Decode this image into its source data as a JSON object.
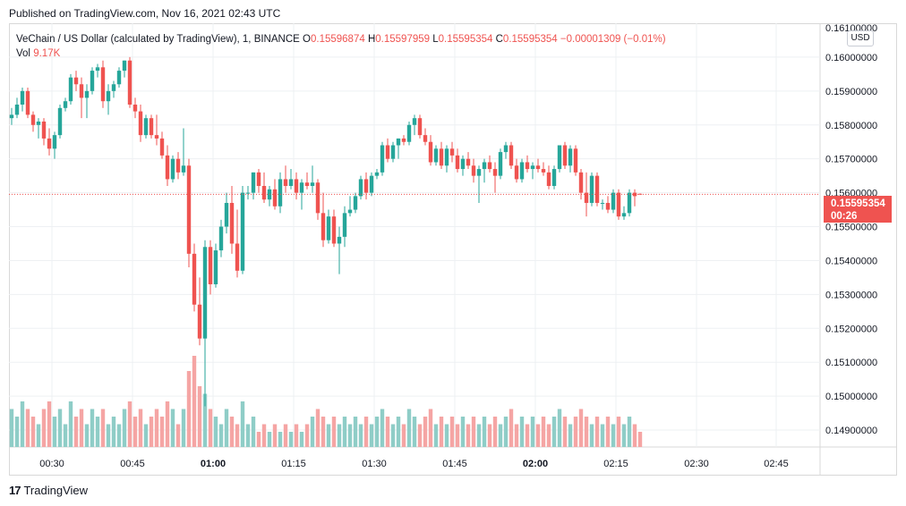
{
  "published": "Published on TradingView.com, Nov 16, 2021 02:43 UTC",
  "legend": {
    "symbol": "VeChain / US Dollar (calculated by TradingView), 1, BINANCE",
    "o_label": "O",
    "o_value": "0.15596874",
    "h_label": "H",
    "h_value": "0.15597959",
    "l_label": "L",
    "l_value": "0.15595354",
    "c_label": "C",
    "c_value": "0.15595354",
    "change": "−0.00001309 (−0.01%)",
    "vol_label": "Vol",
    "vol_value": "9.17K"
  },
  "currency": "USD",
  "last_price": {
    "value": "0.15595354",
    "countdown": "00:26"
  },
  "brand": "TradingView",
  "colors": {
    "up": "#26a69a",
    "down": "#ef5350",
    "up_vol": "#8fcdc7",
    "down_vol": "#f5a5a4",
    "grid": "#eef0f3"
  },
  "icons": {
    "brand": "tradingview-logo-icon"
  },
  "chart_data": {
    "type": "candlestick",
    "y_axis": {
      "min": 0.1485,
      "max": 0.161,
      "ticks": [
        "0.16100000",
        "0.16000000",
        "0.15900000",
        "0.15800000",
        "0.15700000",
        "0.15600000",
        "0.15500000",
        "0.15400000",
        "0.15300000",
        "0.15200000",
        "0.15100000",
        "0.15000000",
        "0.14900000"
      ]
    },
    "x_axis": {
      "ticks": [
        "00:30",
        "00:45",
        "01:00",
        "01:15",
        "01:30",
        "01:45",
        "02:00",
        "02:15",
        "02:30",
        "02:45"
      ]
    },
    "grid": true,
    "last_price": 0.15595354,
    "candles": [
      [
        0.1582,
        0.1585,
        0.158,
        0.1583,
        5
      ],
      [
        0.1583,
        0.1588,
        0.1582,
        0.1586,
        4
      ],
      [
        0.1586,
        0.1591,
        0.1584,
        0.159,
        6
      ],
      [
        0.159,
        0.1591,
        0.1582,
        0.1583,
        5
      ],
      [
        0.1583,
        0.1584,
        0.1578,
        0.158,
        4
      ],
      [
        0.158,
        0.1582,
        0.1576,
        0.1581,
        3
      ],
      [
        0.1581,
        0.1582,
        0.1574,
        0.1576,
        5
      ],
      [
        0.1576,
        0.1579,
        0.1571,
        0.1573,
        6
      ],
      [
        0.1573,
        0.1578,
        0.157,
        0.1577,
        4
      ],
      [
        0.1577,
        0.1586,
        0.1576,
        0.1585,
        5
      ],
      [
        0.1585,
        0.1588,
        0.1584,
        0.1587,
        3
      ],
      [
        0.1587,
        0.1595,
        0.1586,
        0.1594,
        6
      ],
      [
        0.1594,
        0.1596,
        0.159,
        0.1592,
        4
      ],
      [
        0.1592,
        0.1594,
        0.1582,
        0.1588,
        5
      ],
      [
        0.1588,
        0.1592,
        0.1582,
        0.159,
        3
      ],
      [
        0.159,
        0.1597,
        0.1589,
        0.1596,
        5
      ],
      [
        0.1596,
        0.1598,
        0.1594,
        0.1597,
        4
      ],
      [
        0.1597,
        0.1599,
        0.1585,
        0.1587,
        5
      ],
      [
        0.1587,
        0.1592,
        0.1583,
        0.159,
        3
      ],
      [
        0.159,
        0.1593,
        0.1588,
        0.1592,
        4
      ],
      [
        0.1592,
        0.1597,
        0.1591,
        0.1596,
        3
      ],
      [
        0.1596,
        0.1599,
        0.1594,
        0.1599,
        5
      ],
      [
        0.1599,
        0.16,
        0.1585,
        0.1586,
        6
      ],
      [
        0.1586,
        0.1588,
        0.1582,
        0.1584,
        4
      ],
      [
        0.1584,
        0.1586,
        0.1575,
        0.1577,
        5
      ],
      [
        0.1577,
        0.1583,
        0.1576,
        0.1582,
        3
      ],
      [
        0.1582,
        0.1583,
        0.1576,
        0.1577,
        4
      ],
      [
        0.1577,
        0.1583,
        0.1574,
        0.1576,
        5
      ],
      [
        0.1576,
        0.1578,
        0.157,
        0.1571,
        4
      ],
      [
        0.1571,
        0.1574,
        0.1562,
        0.1564,
        6
      ],
      [
        0.1564,
        0.1571,
        0.1563,
        0.157,
        5
      ],
      [
        0.157,
        0.1572,
        0.1564,
        0.1566,
        3
      ],
      [
        0.1566,
        0.1579,
        0.1565,
        0.1568,
        5
      ],
      [
        0.1568,
        0.157,
        0.1538,
        0.1542,
        10
      ],
      [
        0.1542,
        0.1545,
        0.1525,
        0.1527,
        12
      ],
      [
        0.1527,
        0.1535,
        0.1515,
        0.1517,
        8
      ],
      [
        0.1517,
        0.1546,
        0.1497,
        0.1544,
        7
      ],
      [
        0.1544,
        0.1546,
        0.153,
        0.1533,
        5
      ],
      [
        0.1533,
        0.1545,
        0.1532,
        0.1543,
        4
      ],
      [
        0.1543,
        0.1552,
        0.1541,
        0.155,
        3
      ],
      [
        0.155,
        0.156,
        0.1548,
        0.1557,
        5
      ],
      [
        0.1557,
        0.1562,
        0.1542,
        0.1545,
        4
      ],
      [
        0.1545,
        0.1555,
        0.1535,
        0.1537,
        3
      ],
      [
        0.1537,
        0.1562,
        0.1536,
        0.156,
        6
      ],
      [
        0.156,
        0.1562,
        0.1558,
        0.156,
        3
      ],
      [
        0.156,
        0.1566,
        0.1558,
        0.1566,
        4
      ],
      [
        0.1566,
        0.1567,
        0.156,
        0.1562,
        2
      ],
      [
        0.1562,
        0.1566,
        0.1557,
        0.1558,
        3
      ],
      [
        0.1558,
        0.1562,
        0.1556,
        0.1561,
        2
      ],
      [
        0.1561,
        0.1564,
        0.1555,
        0.1556,
        3
      ],
      [
        0.1556,
        0.1566,
        0.1554,
        0.1564,
        2
      ],
      [
        0.1564,
        0.1568,
        0.156,
        0.1562,
        3
      ],
      [
        0.1562,
        0.1567,
        0.1561,
        0.1564,
        2
      ],
      [
        0.1564,
        0.1566,
        0.1558,
        0.156,
        3
      ],
      [
        0.156,
        0.1564,
        0.1555,
        0.1563,
        2
      ],
      [
        0.1563,
        0.1566,
        0.1561,
        0.1562,
        3
      ],
      [
        0.1562,
        0.1568,
        0.156,
        0.1563,
        4
      ],
      [
        0.1563,
        0.1564,
        0.1552,
        0.1554,
        5
      ],
      [
        0.1554,
        0.156,
        0.1544,
        0.1546,
        4
      ],
      [
        0.1546,
        0.1555,
        0.1545,
        0.1553,
        3
      ],
      [
        0.1553,
        0.1555,
        0.1544,
        0.1545,
        4
      ],
      [
        0.1545,
        0.155,
        0.1536,
        0.1547,
        3
      ],
      [
        0.1547,
        0.1556,
        0.1544,
        0.1554,
        4
      ],
      [
        0.1554,
        0.1559,
        0.1553,
        0.1555,
        3
      ],
      [
        0.1555,
        0.156,
        0.1554,
        0.1559,
        4
      ],
      [
        0.1559,
        0.1565,
        0.1558,
        0.1564,
        3
      ],
      [
        0.1564,
        0.1566,
        0.1558,
        0.156,
        4
      ],
      [
        0.156,
        0.1566,
        0.1559,
        0.1565,
        3
      ],
      [
        0.1565,
        0.1567,
        0.1564,
        0.1566,
        4
      ],
      [
        0.1566,
        0.1575,
        0.1565,
        0.1574,
        5
      ],
      [
        0.1574,
        0.1576,
        0.1569,
        0.157,
        4
      ],
      [
        0.157,
        0.1575,
        0.1569,
        0.1574,
        3
      ],
      [
        0.1574,
        0.1576,
        0.157,
        0.1576,
        4
      ],
      [
        0.1576,
        0.1577,
        0.1574,
        0.1575,
        3
      ],
      [
        0.1575,
        0.1581,
        0.1574,
        0.158,
        5
      ],
      [
        0.158,
        0.1583,
        0.1577,
        0.1582,
        4
      ],
      [
        0.1582,
        0.1583,
        0.1576,
        0.1577,
        3
      ],
      [
        0.1577,
        0.1579,
        0.1574,
        0.1575,
        4
      ],
      [
        0.1575,
        0.1577,
        0.1568,
        0.1569,
        5
      ],
      [
        0.1569,
        0.1574,
        0.1568,
        0.1573,
        3
      ],
      [
        0.1573,
        0.1575,
        0.1567,
        0.1568,
        4
      ],
      [
        0.1568,
        0.1574,
        0.1566,
        0.1573,
        3
      ],
      [
        0.1573,
        0.1575,
        0.1569,
        0.1571,
        4
      ],
      [
        0.1571,
        0.1573,
        0.1566,
        0.1567,
        3
      ],
      [
        0.1567,
        0.1571,
        0.1565,
        0.157,
        4
      ],
      [
        0.157,
        0.1572,
        0.1567,
        0.1568,
        3
      ],
      [
        0.1568,
        0.157,
        0.1563,
        0.1565,
        4
      ],
      [
        0.1565,
        0.1568,
        0.1557,
        0.1567,
        3
      ],
      [
        0.1567,
        0.157,
        0.1563,
        0.1569,
        4
      ],
      [
        0.1569,
        0.1571,
        0.1566,
        0.1567,
        3
      ],
      [
        0.1567,
        0.1569,
        0.156,
        0.1565,
        4
      ],
      [
        0.1565,
        0.1573,
        0.1564,
        0.1572,
        3
      ],
      [
        0.1572,
        0.1575,
        0.157,
        0.1574,
        4
      ],
      [
        0.1574,
        0.1575,
        0.1567,
        0.1568,
        5
      ],
      [
        0.1568,
        0.157,
        0.1563,
        0.1564,
        3
      ],
      [
        0.1564,
        0.157,
        0.1563,
        0.1569,
        4
      ],
      [
        0.1569,
        0.1571,
        0.1566,
        0.1567,
        3
      ],
      [
        0.1567,
        0.1569,
        0.1564,
        0.1568,
        4
      ],
      [
        0.1568,
        0.157,
        0.1566,
        0.1567,
        3
      ],
      [
        0.1567,
        0.1569,
        0.1565,
        0.1566,
        4
      ],
      [
        0.1566,
        0.1568,
        0.1561,
        0.1562,
        3
      ],
      [
        0.1562,
        0.1568,
        0.1561,
        0.1567,
        4
      ],
      [
        0.1567,
        0.1574,
        0.1566,
        0.1574,
        5
      ],
      [
        0.1574,
        0.1575,
        0.1567,
        0.1568,
        4
      ],
      [
        0.1568,
        0.1574,
        0.1566,
        0.1573,
        3
      ],
      [
        0.1573,
        0.1574,
        0.1565,
        0.1566,
        4
      ],
      [
        0.1566,
        0.1567,
        0.1558,
        0.156,
        5
      ],
      [
        0.156,
        0.1566,
        0.1553,
        0.1557,
        4
      ],
      [
        0.1557,
        0.1566,
        0.1556,
        0.1565,
        3
      ],
      [
        0.1565,
        0.1566,
        0.1556,
        0.1557,
        4
      ],
      [
        0.1557,
        0.1558,
        0.1555,
        0.1557,
        3
      ],
      [
        0.1557,
        0.1559,
        0.1554,
        0.1555,
        4
      ],
      [
        0.1555,
        0.1561,
        0.1554,
        0.156,
        3
      ],
      [
        0.156,
        0.1561,
        0.1552,
        0.1553,
        4
      ],
      [
        0.1553,
        0.1556,
        0.1552,
        0.1554,
        3
      ],
      [
        0.1554,
        0.1561,
        0.1553,
        0.156,
        4
      ],
      [
        0.156,
        0.1561,
        0.1556,
        0.1559,
        3
      ],
      [
        0.15596874,
        0.15597959,
        0.15595354,
        0.15595354,
        2
      ]
    ]
  }
}
